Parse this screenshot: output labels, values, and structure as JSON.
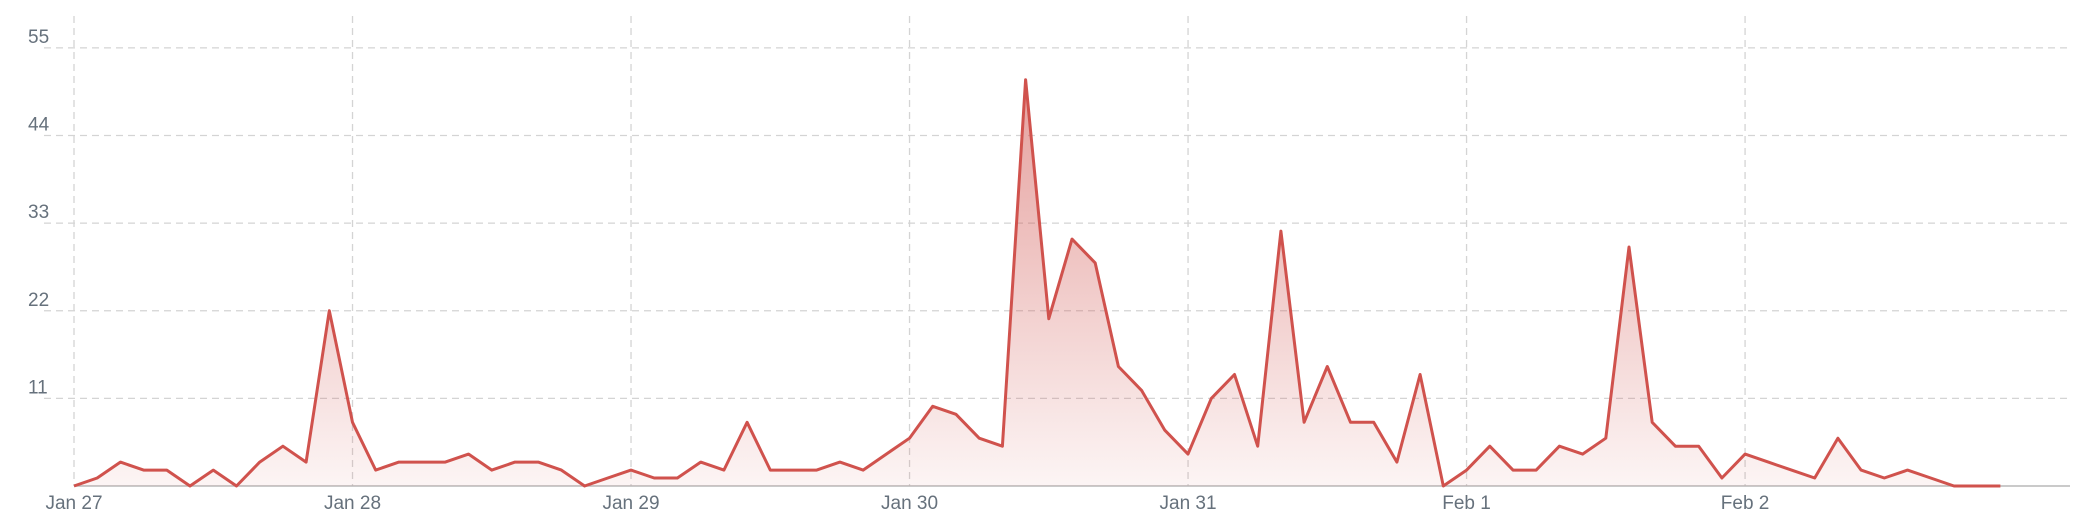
{
  "chart_data": {
    "type": "area",
    "x": [
      0,
      2,
      4,
      6,
      8,
      10,
      12,
      14,
      16,
      18,
      20,
      22,
      24,
      26,
      28,
      30,
      32,
      34,
      36,
      38,
      40,
      42,
      44,
      46,
      48,
      50,
      52,
      54,
      56,
      58,
      60,
      62,
      64,
      66,
      68,
      70,
      72,
      74,
      76,
      78,
      80,
      82,
      84,
      86,
      88,
      90,
      92,
      94,
      96,
      98,
      100,
      102,
      104,
      106,
      108,
      110,
      112,
      114,
      116,
      118,
      120,
      122,
      124,
      126,
      128,
      130,
      132,
      134,
      136,
      138,
      140,
      142,
      144,
      146,
      148,
      150,
      152,
      154,
      156,
      158,
      160,
      162,
      164,
      166
    ],
    "series": [
      {
        "color": "#d0524d",
        "values": [
          0,
          1,
          3,
          2,
          2,
          0,
          2,
          0,
          3,
          5,
          3,
          22,
          8,
          2,
          3,
          3,
          3,
          4,
          2,
          3,
          3,
          2,
          0,
          1,
          2,
          1,
          1,
          3,
          2,
          8,
          2,
          2,
          2,
          3,
          2,
          4,
          6,
          10,
          9,
          6,
          5,
          51,
          21,
          31,
          28,
          15,
          12,
          7,
          4,
          11,
          14,
          5,
          32,
          8,
          15,
          8,
          8,
          3,
          14,
          0,
          2,
          5,
          2,
          2,
          5,
          4,
          6,
          30,
          8,
          5,
          5,
          1,
          4,
          3,
          2,
          1,
          6,
          2,
          1,
          2,
          1,
          0,
          0,
          0
        ]
      }
    ],
    "xlim": [
      0,
      172
    ],
    "xticks": [
      {
        "value": 0,
        "label": "Jan 27"
      },
      {
        "value": 24,
        "label": "Jan 28"
      },
      {
        "value": 48,
        "label": "Jan 29"
      },
      {
        "value": 72,
        "label": "Jan 30"
      },
      {
        "value": 96,
        "label": "Jan 31"
      },
      {
        "value": 120,
        "label": "Feb 1"
      },
      {
        "value": 144,
        "label": "Feb 2"
      }
    ],
    "ylim": [
      0,
      59
    ],
    "yticks": [
      11,
      22,
      33,
      44,
      55
    ],
    "grid": true
  }
}
